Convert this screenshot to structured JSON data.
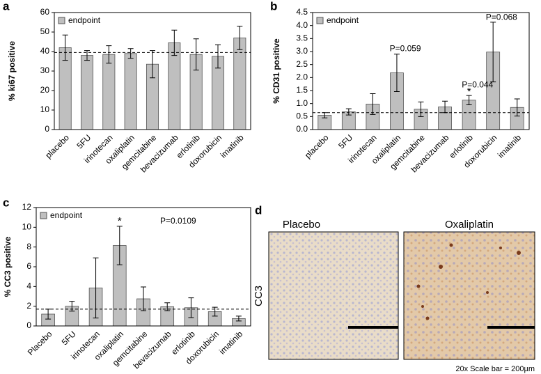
{
  "chart_data": [
    {
      "type": "bar",
      "panel_label": "a",
      "ylabel": "% ki67 positive",
      "categories": [
        "placebo",
        "5FU",
        "irinotecan",
        "oxaliplatin",
        "gemcitabine",
        "bevacizumab",
        "erlotinib",
        "doxorubicin",
        "imatinib"
      ],
      "series": [
        {
          "name": "endpoint",
          "color": "#bfbfbf",
          "values": [
            42,
            38,
            38.5,
            39,
            33.5,
            44.5,
            38.5,
            37.5,
            47
          ],
          "errors": [
            6.5,
            2.5,
            4.5,
            2.5,
            7,
            6.5,
            8,
            6,
            6
          ]
        }
      ],
      "reference_line": 39.5,
      "ylim": [
        0,
        60
      ],
      "yticks": [
        0,
        10,
        20,
        30,
        40,
        50,
        60
      ],
      "annotations": []
    },
    {
      "type": "bar",
      "panel_label": "b",
      "ylabel": "% CD31 positive",
      "categories": [
        "placebo",
        "5FU",
        "irinotecan",
        "oxaliplatin",
        "gemcitabine",
        "bevacizumab",
        "erlotinib",
        "doxorubicin",
        "imatinib"
      ],
      "series": [
        {
          "name": "endpoint",
          "color": "#bfbfbf",
          "values": [
            0.55,
            0.68,
            0.98,
            2.18,
            0.78,
            0.87,
            1.13,
            2.98,
            0.85
          ],
          "errors": [
            0.1,
            0.12,
            0.4,
            0.72,
            0.28,
            0.22,
            0.18,
            1.15,
            0.33
          ]
        }
      ],
      "reference_line": 0.65,
      "ylim": [
        0,
        4.5
      ],
      "yticks": [
        {
          "value": 0,
          "label": "0.0"
        },
        0.5,
        {
          "value": 1,
          "label": "1.0"
        },
        1.5,
        {
          "value": 2,
          "label": "2.0"
        },
        2.5,
        {
          "value": 3,
          "label": "3.0"
        },
        3.5,
        {
          "value": 4,
          "label": "4.0"
        },
        4.5
      ],
      "annotations": [
        {
          "text": "P=0.059",
          "category": "oxaliplatin",
          "y": 3.1
        },
        {
          "text": "*",
          "category": "erlotinib",
          "y": 1.45
        },
        {
          "text": "P=0.044",
          "category": "erlotinib",
          "y": 1.7
        },
        {
          "text": "P=0.068",
          "category": "doxorubicin",
          "y": 4.3
        }
      ]
    },
    {
      "type": "bar",
      "panel_label": "c",
      "ylabel": "% CC3 positive",
      "categories": [
        "Placebo",
        "5FU",
        "irinotecan",
        "oxaliplatin",
        "gemcitabine",
        "bevacizumab",
        "erlotinib",
        "doxorubicin",
        "imatinib"
      ],
      "series": [
        {
          "name": "endpoint",
          "color": "#bfbfbf",
          "values": [
            1.2,
            2.0,
            3.85,
            8.15,
            2.75,
            1.95,
            1.85,
            1.45,
            0.75
          ],
          "errors": [
            0.5,
            0.5,
            3.05,
            1.95,
            1.2,
            0.4,
            1.0,
            0.45,
            0.25
          ]
        }
      ],
      "reference_line": 1.7,
      "ylim": [
        0,
        12
      ],
      "yticks": [
        0,
        2,
        4,
        6,
        8,
        10,
        12
      ],
      "annotations": [
        {
          "text": "*",
          "category": "oxaliplatin",
          "y": 10.6
        },
        {
          "text": "P=0.0109",
          "category": "bevacizumab",
          "y": 10.6
        }
      ]
    }
  ],
  "panel_d": {
    "label": "d",
    "images": [
      {
        "title": "Placebo"
      },
      {
        "title": "Oxaliplatin"
      }
    ],
    "stain": "CC3",
    "scale_note": "20x Scale bar = 200µm"
  }
}
